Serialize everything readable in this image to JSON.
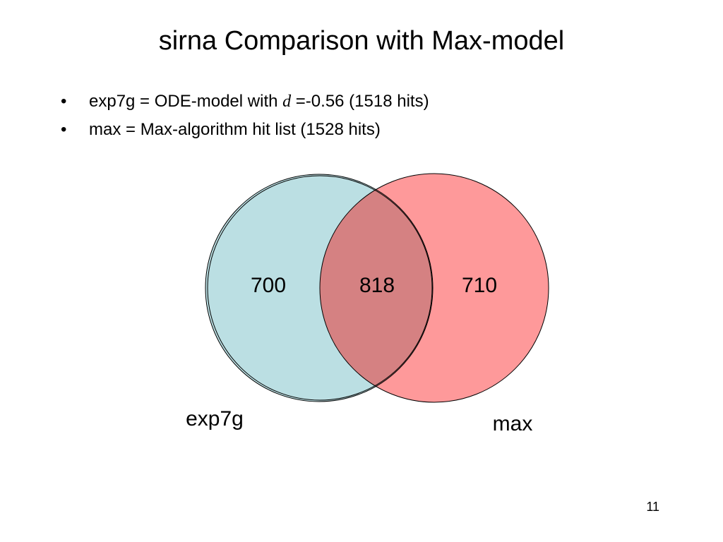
{
  "slide": {
    "title": "sirna Comparison with Max-model",
    "page_number": "11"
  },
  "bullets": [
    {
      "marker": "•",
      "text_before": "exp7g = ODE-model with ",
      "variable": "d",
      "text_after": " =-0.56 (1518 hits)"
    },
    {
      "marker": "•",
      "text": "max = Max-algorithm hit list (1528 hits)"
    }
  ],
  "venn": {
    "sets": [
      {
        "label": "exp7g",
        "color": "#bbdfe3"
      },
      {
        "label": "max",
        "color": "#fe999a"
      }
    ],
    "overlap_color": "#d58182",
    "regions": {
      "left_only": "700",
      "both": "818",
      "right_only": "710"
    }
  }
}
